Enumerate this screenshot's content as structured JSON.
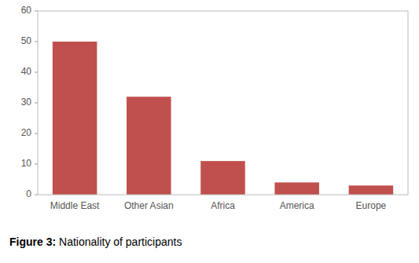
{
  "chart_data": {
    "type": "bar",
    "title": "Figure 3: Nationality of participants",
    "categories": [
      "Middle East",
      "Other Asian",
      "Africa",
      "America",
      "Europe"
    ],
    "values": [
      50,
      32,
      11,
      4,
      3
    ],
    "color": "#c0504d",
    "ylim": [
      0,
      60
    ],
    "yticks": [
      0,
      10,
      20,
      30,
      40,
      50,
      60
    ],
    "grid": false
  }
}
